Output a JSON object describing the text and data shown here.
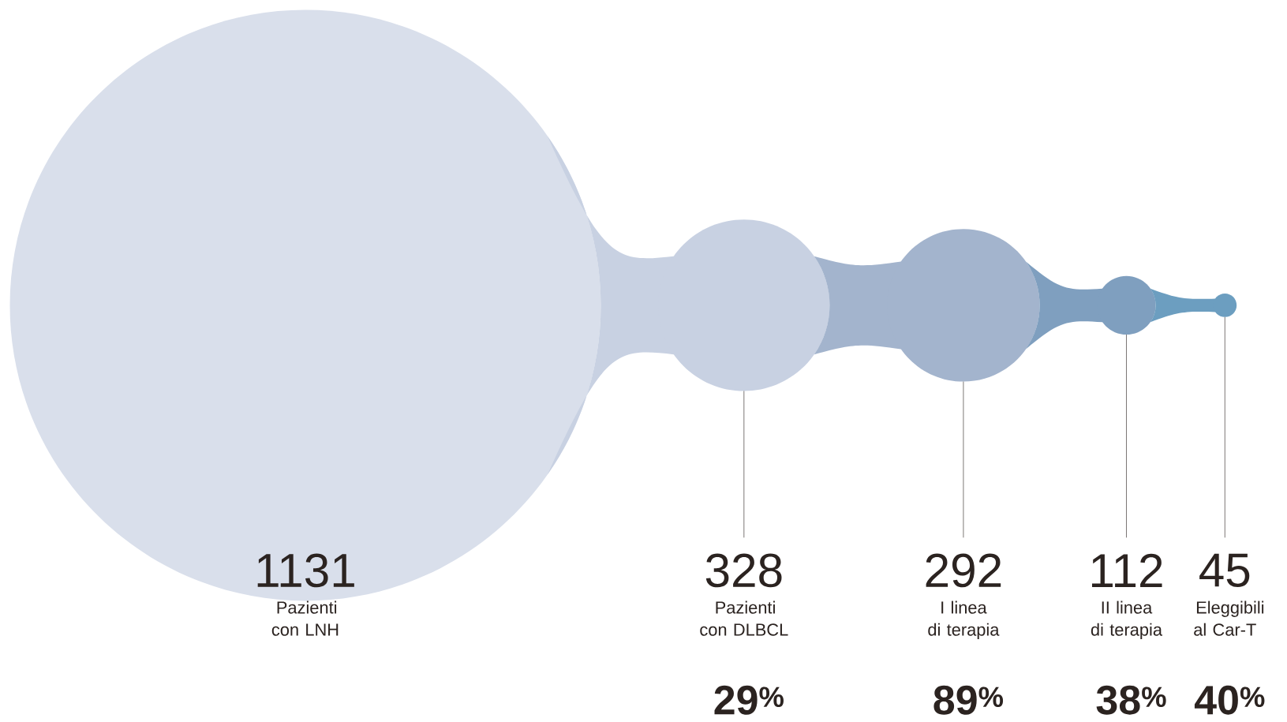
{
  "chart_data": {
    "type": "other",
    "categories": [
      "Pazienti con LNH",
      "Pazienti con DLBCL",
      "I linea di terapia",
      "II linea di terapia",
      "Eleggibili al Car-T"
    ],
    "values": [
      1131,
      328,
      292,
      112,
      45
    ],
    "colors": [
      "#d9dfeb",
      "#c8d1e2",
      "#a3b4cd",
      "#7f9fbf",
      "#6c9ec0"
    ],
    "data_labels": true,
    "annotations": [
      "29$^{%}$",
      "89$^{%}$",
      "38$^{%}$",
      "40$^{%}$"
    ]
  }
}
